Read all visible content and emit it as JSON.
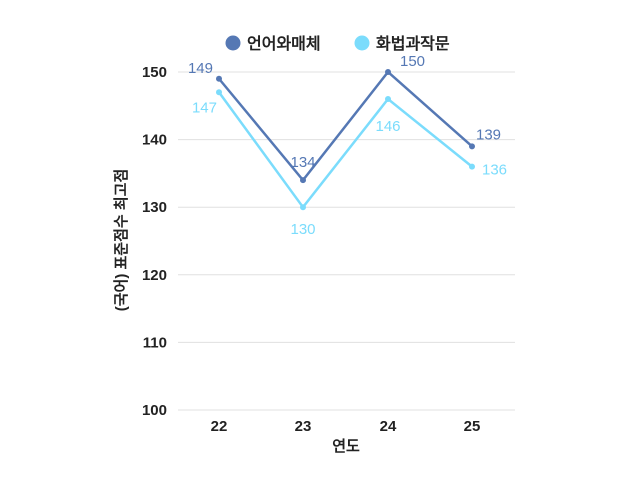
{
  "chart_data": {
    "type": "line",
    "title": "",
    "xlabel": "연도",
    "ylabel": "(국어) 표준점수 최고점",
    "categories": [
      "22",
      "23",
      "24",
      "25"
    ],
    "ylim": [
      100,
      150
    ],
    "yticks": [
      "100",
      "110",
      "120",
      "130",
      "140",
      "150"
    ],
    "grid": true,
    "legend_position": "top",
    "series": [
      {
        "name": "언어와매체",
        "color": "#5578b4",
        "values": [
          149,
          134,
          150,
          139
        ],
        "labels": [
          "149",
          "134",
          "150",
          "139"
        ]
      },
      {
        "name": "화법과작문",
        "color": "#7bdcfc",
        "values": [
          147,
          130,
          146,
          136
        ],
        "labels": [
          "147",
          "130",
          "146",
          "136"
        ]
      }
    ]
  }
}
